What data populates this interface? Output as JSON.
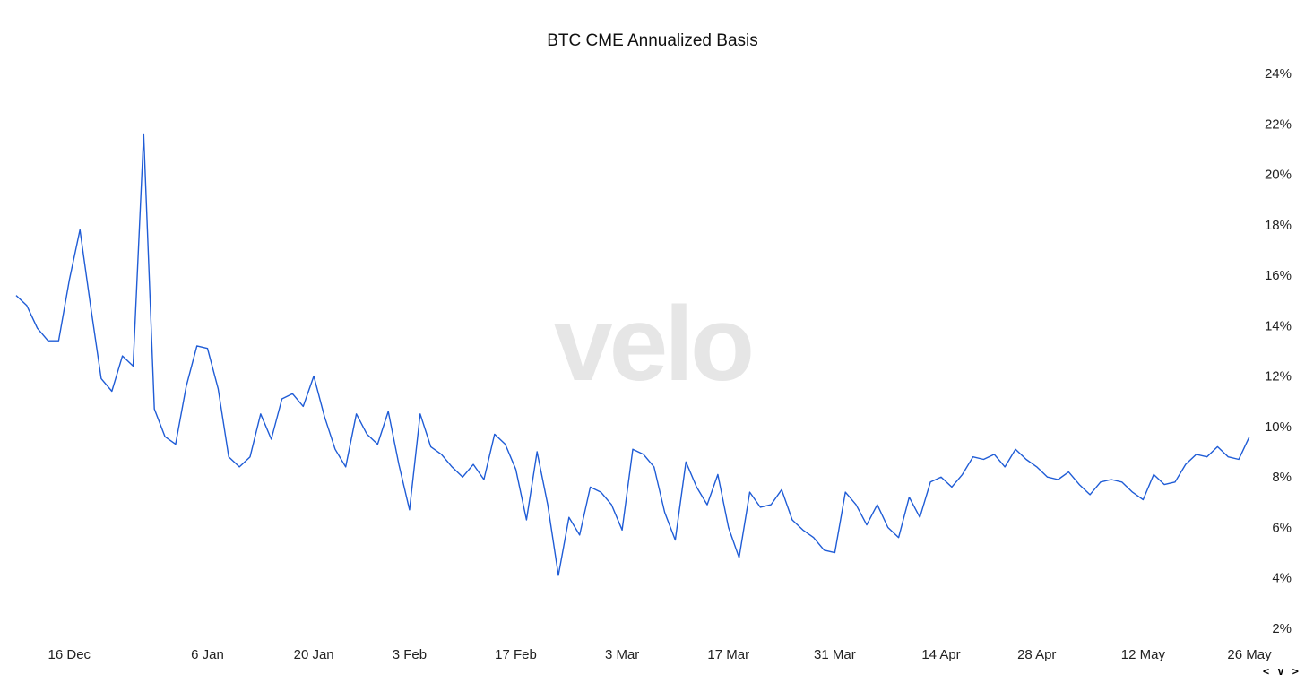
{
  "nav_label": "< v >",
  "watermark": "velo",
  "colors": {
    "line": "#1f5cd6",
    "watermark": "#e6e6e6",
    "text": "#111111"
  },
  "chart_data": {
    "type": "line",
    "title": "BTC CME Annualized Basis",
    "xlabel": "",
    "ylabel": "",
    "y_axis_position": "right",
    "grid": false,
    "legend": "none",
    "ylim": [
      1.5,
      24.5
    ],
    "yticks": [
      24,
      22,
      20,
      18,
      16,
      14,
      12,
      10,
      8,
      6,
      4,
      2
    ],
    "ytick_labels": [
      "24%",
      "22%",
      "20%",
      "18%",
      "16%",
      "14%",
      "12%",
      "10%",
      "8%",
      "6%",
      "4%",
      "2%"
    ],
    "xticks": [
      {
        "label": "16 Dec",
        "index": 5
      },
      {
        "label": "6 Jan",
        "index": 18
      },
      {
        "label": "20 Jan",
        "index": 28
      },
      {
        "label": "3 Feb",
        "index": 37
      },
      {
        "label": "17 Feb",
        "index": 47
      },
      {
        "label": "3 Mar",
        "index": 57
      },
      {
        "label": "17 Mar",
        "index": 67
      },
      {
        "label": "31 Mar",
        "index": 77
      },
      {
        "label": "14 Apr",
        "index": 87
      },
      {
        "label": "28 Apr",
        "index": 96
      },
      {
        "label": "12 May",
        "index": 106
      },
      {
        "label": "26 May",
        "index": 116
      }
    ],
    "series": [
      {
        "values": [
          15.2,
          14.8,
          13.9,
          13.4,
          13.4,
          15.8,
          17.8,
          14.8,
          11.9,
          11.4,
          12.8,
          12.4,
          21.6,
          10.7,
          9.6,
          9.3,
          11.6,
          13.2,
          13.1,
          11.5,
          8.8,
          8.4,
          8.8,
          10.5,
          9.5,
          11.1,
          11.3,
          10.8,
          12.0,
          10.4,
          9.1,
          8.4,
          10.5,
          9.7,
          9.3,
          10.6,
          8.5,
          6.7,
          10.5,
          9.2,
          8.9,
          8.4,
          8.0,
          8.5,
          7.9,
          9.7,
          9.3,
          8.3,
          6.3,
          9.0,
          6.9,
          4.1,
          6.4,
          5.7,
          7.6,
          7.4,
          6.9,
          5.9,
          9.1,
          8.9,
          8.4,
          6.6,
          5.5,
          8.6,
          7.6,
          6.9,
          8.1,
          6.0,
          4.8,
          7.4,
          6.8,
          6.9,
          7.5,
          6.3,
          5.9,
          5.6,
          5.1,
          5.0,
          7.4,
          6.9,
          6.1,
          6.9,
          6.0,
          5.6,
          7.2,
          6.4,
          7.8,
          8.0,
          7.6,
          8.1,
          8.8,
          8.7,
          8.9,
          8.4,
          9.1,
          8.7,
          8.4,
          8.0,
          7.9,
          8.2,
          7.7,
          7.3,
          7.8,
          7.9,
          7.8,
          7.4,
          7.1,
          8.1,
          7.7,
          7.8,
          8.5,
          8.9,
          8.8,
          9.2,
          8.8,
          8.7,
          9.6
        ]
      }
    ]
  }
}
